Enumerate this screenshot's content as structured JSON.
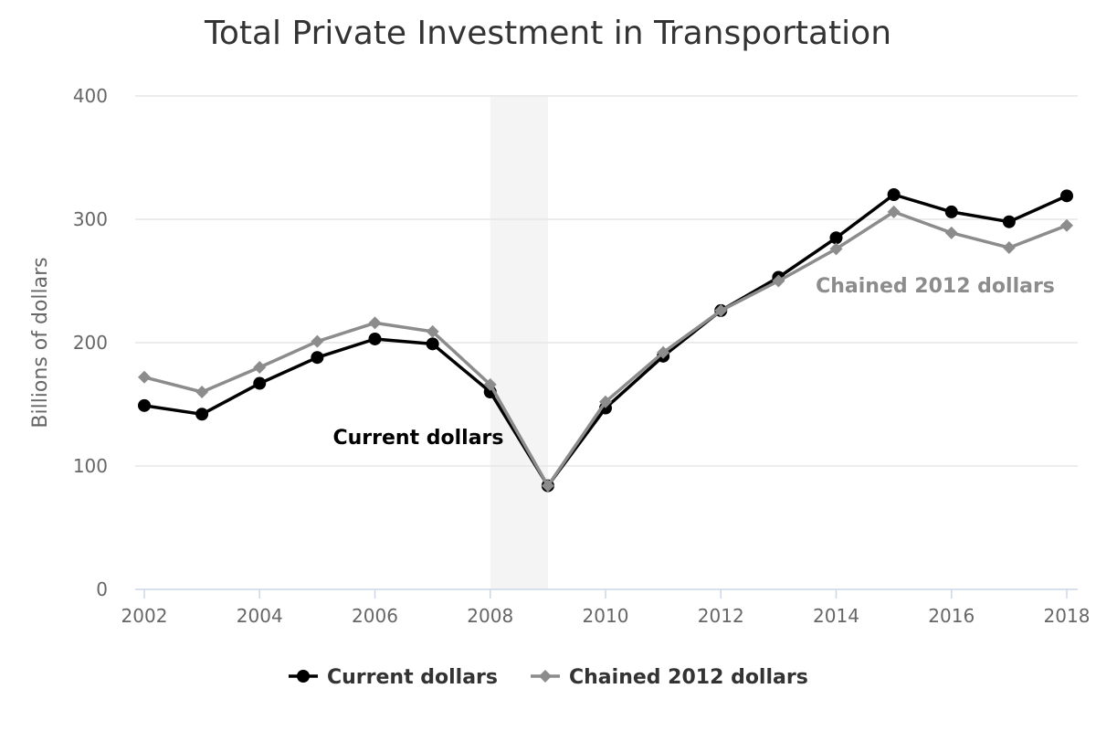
{
  "chart_data": {
    "type": "line",
    "title": "Total Private Investment in Transportation",
    "xlabel": "",
    "ylabel": "Billions of dollars",
    "x": [
      2002,
      2003,
      2004,
      2005,
      2006,
      2007,
      2008,
      2009,
      2010,
      2011,
      2012,
      2013,
      2014,
      2015,
      2016,
      2017,
      2018
    ],
    "x_ticks": [
      "2002",
      "2004",
      "2006",
      "2008",
      "2010",
      "2012",
      "2014",
      "2016",
      "2018"
    ],
    "y_ticks": [
      "0",
      "100",
      "200",
      "300",
      "400"
    ],
    "xlim": [
      2002,
      2018
    ],
    "ylim": [
      0,
      400
    ],
    "grid": true,
    "legend_position": "bottom-center",
    "shaded_band": {
      "x_start": 2008,
      "x_end": 2009,
      "color": "#f4f4f4"
    },
    "series": [
      {
        "name": "Current dollars",
        "color": "#000000",
        "marker": "circle",
        "values": [
          149,
          142,
          167,
          188,
          203,
          199,
          160,
          84,
          147,
          189,
          226,
          253,
          285,
          320,
          306,
          298,
          319
        ]
      },
      {
        "name": "Chained 2012 dollars",
        "color": "#8c8c8c",
        "marker": "diamond",
        "values": [
          172,
          160,
          180,
          201,
          216,
          209,
          166,
          84,
          152,
          192,
          226,
          250,
          276,
          306,
          289,
          277,
          295
        ]
      }
    ],
    "annotations": [
      {
        "text": "Current dollars",
        "series": 0,
        "color": "#000000"
      },
      {
        "text": "Chained 2012 dollars",
        "series": 1,
        "color": "#8c8c8c"
      }
    ]
  }
}
